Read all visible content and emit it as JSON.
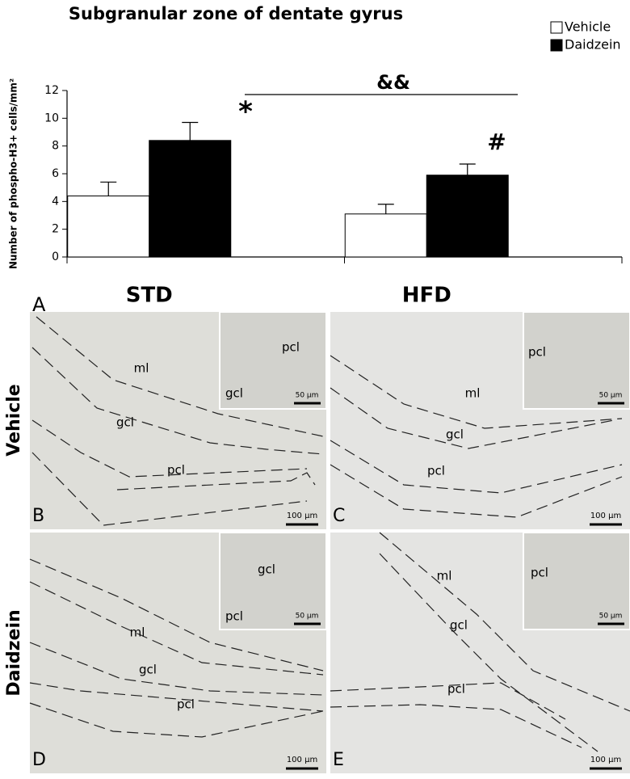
{
  "chart_data": {
    "type": "bar",
    "title": "Subgranular zone of dentate gyrus",
    "ylabel": "Number of phospho-H3+ cells/mm²",
    "panel": "A",
    "categories": [
      "STD",
      "HFD"
    ],
    "series": [
      {
        "name": "Vehicle",
        "color": "#ffffff",
        "values": [
          4.4,
          3.1
        ],
        "errors": [
          1.0,
          0.7
        ]
      },
      {
        "name": "Daidzein",
        "color": "#000000",
        "values": [
          8.4,
          5.9
        ],
        "errors": [
          1.3,
          0.8
        ]
      }
    ],
    "ylim": [
      0,
      12
    ],
    "yticks": [
      0,
      2,
      4,
      6,
      8,
      10,
      12
    ],
    "annotations": [
      "*",
      "#",
      "&&"
    ],
    "legend": "upper right"
  },
  "row_labels": [
    "Vehicle",
    "Daidzein"
  ],
  "panels": [
    {
      "letter": "B",
      "labels": [
        "ml",
        "gcl",
        "pcl"
      ],
      "inset_labels": [
        "pcl",
        "gcl"
      ],
      "scale": "100 µm",
      "inset_scale": "50 µm"
    },
    {
      "letter": "C",
      "labels": [
        "ml",
        "gcl",
        "pcl"
      ],
      "inset_labels": [
        "pcl"
      ],
      "scale": "100 µm",
      "inset_scale": "50 µm"
    },
    {
      "letter": "D",
      "labels": [
        "ml",
        "gcl",
        "pcl"
      ],
      "inset_labels": [
        "gcl",
        "pcl"
      ],
      "scale": "100 µm",
      "inset_scale": "50 µm"
    },
    {
      "letter": "E",
      "labels": [
        "ml",
        "gcl",
        "pcl"
      ],
      "inset_labels": [
        "pcl"
      ],
      "scale": "100 µm",
      "inset_scale": "50 µm"
    }
  ]
}
